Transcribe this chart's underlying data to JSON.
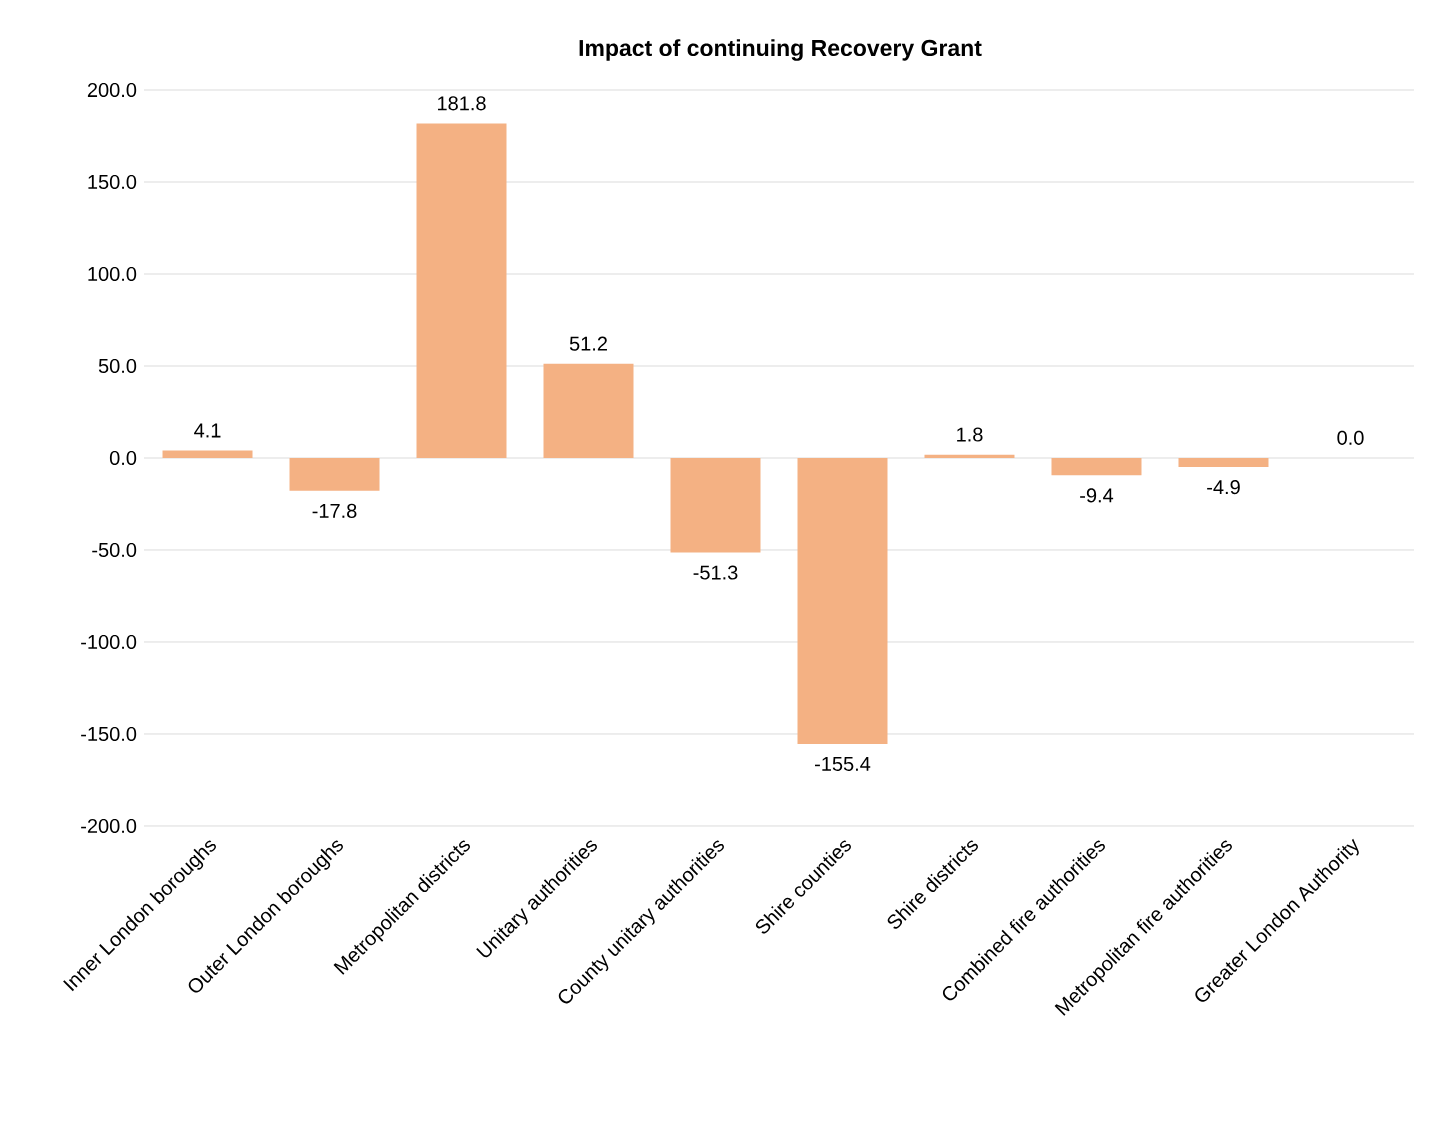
{
  "chart_data": {
    "type": "bar",
    "title": "Impact of continuing Recovery Grant",
    "categories": [
      "Inner London boroughs",
      "Outer London boroughs",
      "Metropolitan districts",
      "Unitary authorities",
      "County unitary authorities",
      "Shire counties",
      "Shire districts",
      "Combined fire authorities",
      "Metropolitan fire authorities",
      "Greater London Authority"
    ],
    "values": [
      4.1,
      -17.8,
      181.8,
      51.2,
      -51.3,
      -155.4,
      1.8,
      -9.4,
      -4.9,
      0.0
    ],
    "value_labels": [
      "4.1",
      "-17.8",
      "181.8",
      "51.2",
      "-51.3",
      "-155.4",
      "1.8",
      "-9.4",
      "-4.9",
      "0.0"
    ],
    "color": "#f4b183",
    "ylim": [
      -200,
      200
    ],
    "yticks": [
      {
        "value": -200,
        "label": "-200.0"
      },
      {
        "value": -150,
        "label": "-150.0"
      },
      {
        "value": -100,
        "label": "-100.0"
      },
      {
        "value": -50,
        "label": "-50.0"
      },
      {
        "value": 0,
        "label": "0.0"
      },
      {
        "value": 50,
        "label": "50.0"
      },
      {
        "value": 100,
        "label": "100.0"
      },
      {
        "value": 150,
        "label": "150.0"
      },
      {
        "value": 200,
        "label": "200.0"
      }
    ],
    "grid": "y"
  }
}
